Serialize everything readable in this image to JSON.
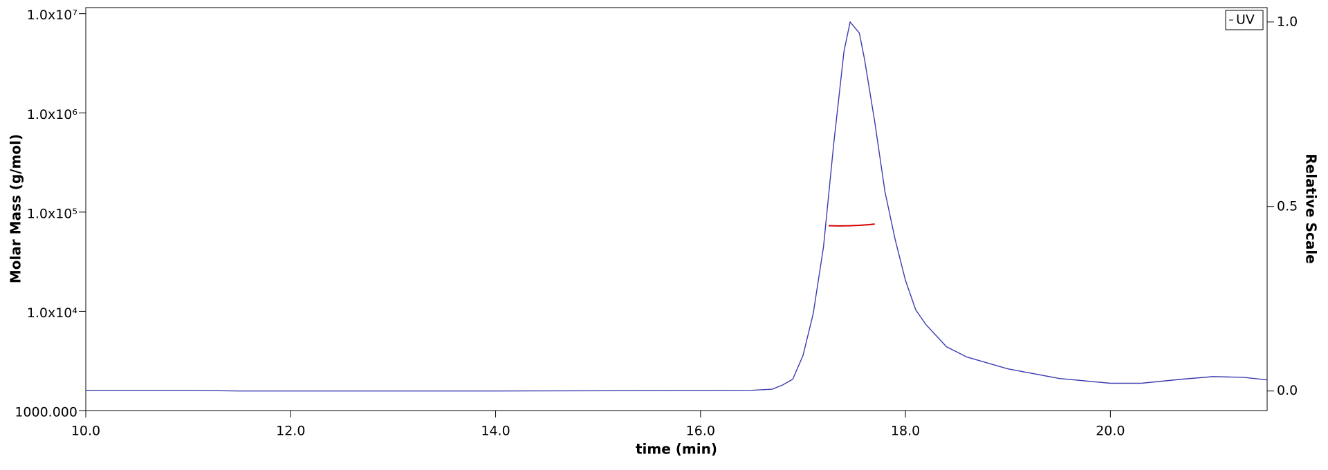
{
  "chart_data": {
    "type": "line",
    "x_label": "time (min)",
    "y_label": "Molar Mass (g/mol)",
    "y2_label": "Relative Scale",
    "xlim": [
      10,
      21.53
    ],
    "xticks": [
      {
        "value": 10,
        "label": "10.0"
      },
      {
        "value": 12,
        "label": "12.0"
      },
      {
        "value": 14,
        "label": "14.0"
      },
      {
        "value": 16,
        "label": "16.0"
      },
      {
        "value": 18,
        "label": "18.0"
      },
      {
        "value": 20,
        "label": "20.0"
      }
    ],
    "ylim": [
      1000,
      11500000
    ],
    "yscale": "log",
    "yticks": [
      {
        "value": 1000,
        "label": "1000.000"
      },
      {
        "value": 10000,
        "label": "1.0x10⁴"
      },
      {
        "value": 100000,
        "label": "1.0x10⁵"
      },
      {
        "value": 1000000,
        "label": "1.0x10⁶"
      },
      {
        "value": 10000000,
        "label": "1.0x10⁷"
      }
    ],
    "y2lim": [
      -0.053,
      1.039
    ],
    "y2ticks": [
      {
        "value": 0,
        "label": "0.0"
      },
      {
        "value": 0.5,
        "label": "0.5"
      },
      {
        "value": 1,
        "label": "1.0"
      }
    ],
    "legend": "upper right",
    "series": [
      {
        "name": "UV",
        "color": "#3b3bb0",
        "axis": "y2",
        "x": [
          10.0,
          11.0,
          11.5,
          12.0,
          14.0,
          15.5,
          16.5,
          16.7,
          16.8,
          16.9,
          17.0,
          17.1,
          17.2,
          17.3,
          17.4,
          17.46,
          17.55,
          17.6,
          17.7,
          17.8,
          17.9,
          18.0,
          18.1,
          18.2,
          18.4,
          18.6,
          19.0,
          19.5,
          20.0,
          20.3,
          20.7,
          21.0,
          21.3,
          21.53
        ],
        "values": [
          0.002,
          0.002,
          0.0,
          0.0,
          0.0,
          0.001,
          0.002,
          0.005,
          0.016,
          0.032,
          0.096,
          0.21,
          0.39,
          0.67,
          0.92,
          1.0,
          0.97,
          0.9,
          0.73,
          0.54,
          0.41,
          0.3,
          0.22,
          0.18,
          0.12,
          0.092,
          0.06,
          0.034,
          0.021,
          0.021,
          0.032,
          0.039,
          0.037,
          0.03
        ]
      },
      {
        "color": "#d40000",
        "axis": "y",
        "x": [
          17.25,
          17.35,
          17.45,
          17.55,
          17.65,
          17.7
        ],
        "values": [
          73000,
          72500,
          72800,
          73500,
          74800,
          75800
        ]
      }
    ]
  }
}
